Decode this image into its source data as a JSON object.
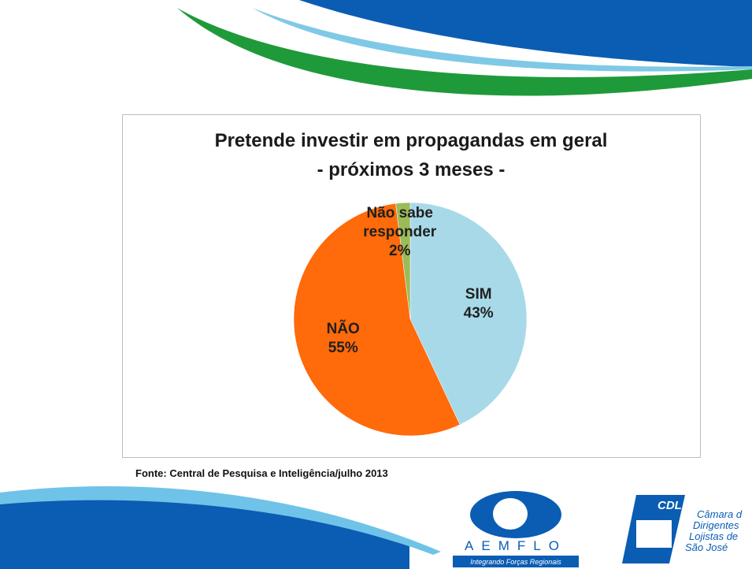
{
  "chart_data": {
    "type": "pie",
    "title": "Pretende investir em propagandas  em geral",
    "subtitle": "- próximos 3 meses -",
    "categories": [
      "SIM",
      "NÃO",
      "Não sabe responder"
    ],
    "values": [
      43,
      55,
      2
    ],
    "value_labels": [
      "43%",
      "55%",
      "2%"
    ],
    "colors": [
      "#a8d9e9",
      "#ff6a0a",
      "#9bbb59"
    ]
  },
  "source": "Fonte: Central de Pesquisa e Inteligência/julho 2013",
  "footer": {
    "aemflo": "AEMFLO",
    "aemflo_tagline": "Integrando Forças Regionais",
    "cdl": "CDL",
    "cdl_lines": [
      "Câmara d",
      "Dirigentes",
      "Lojistas de",
      "São José"
    ]
  }
}
